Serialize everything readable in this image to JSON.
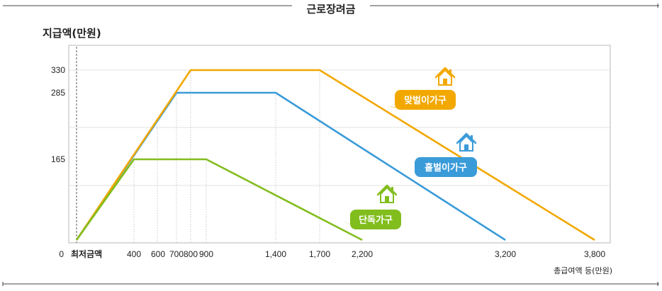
{
  "chart_data": {
    "type": "line",
    "title": "근로장려금",
    "ylabel": "지급액(만원)",
    "xlabel": "총급여액 등(만원)",
    "y_ticks": [
      {
        "value": 0,
        "label": "0"
      },
      {
        "value": 165,
        "label": "165"
      },
      {
        "value": 285,
        "label": "285"
      },
      {
        "value": 330,
        "label": "330"
      }
    ],
    "x_ticks": [
      {
        "value": 0,
        "label": "최저금액"
      },
      {
        "value": 400,
        "label": "400"
      },
      {
        "value": 600,
        "label": "600"
      },
      {
        "value": 700,
        "label": "700"
      },
      {
        "value": 800,
        "label": "800"
      },
      {
        "value": 900,
        "label": "900"
      },
      {
        "value": 1400,
        "label": "1,400"
      },
      {
        "value": 1700,
        "label": "1,700"
      },
      {
        "value": 2200,
        "label": "2,200"
      },
      {
        "value": 3200,
        "label": "3,200"
      },
      {
        "value": 3800,
        "label": "3,800"
      }
    ],
    "series": [
      {
        "name": "맞벌이가구",
        "color": "#f2a800",
        "points": [
          [
            0,
            0
          ],
          [
            800,
            330
          ],
          [
            1700,
            330
          ],
          [
            3800,
            0
          ]
        ]
      },
      {
        "name": "홑벌이가구",
        "color": "#3a9bd9",
        "points": [
          [
            0,
            0
          ],
          [
            700,
            285
          ],
          [
            1400,
            285
          ],
          [
            3200,
            0
          ]
        ]
      },
      {
        "name": "단독가구",
        "color": "#82bd1e",
        "points": [
          [
            0,
            0
          ],
          [
            400,
            165
          ],
          [
            900,
            165
          ],
          [
            2200,
            0
          ]
        ]
      }
    ],
    "legend": "inline labels with house icons"
  }
}
